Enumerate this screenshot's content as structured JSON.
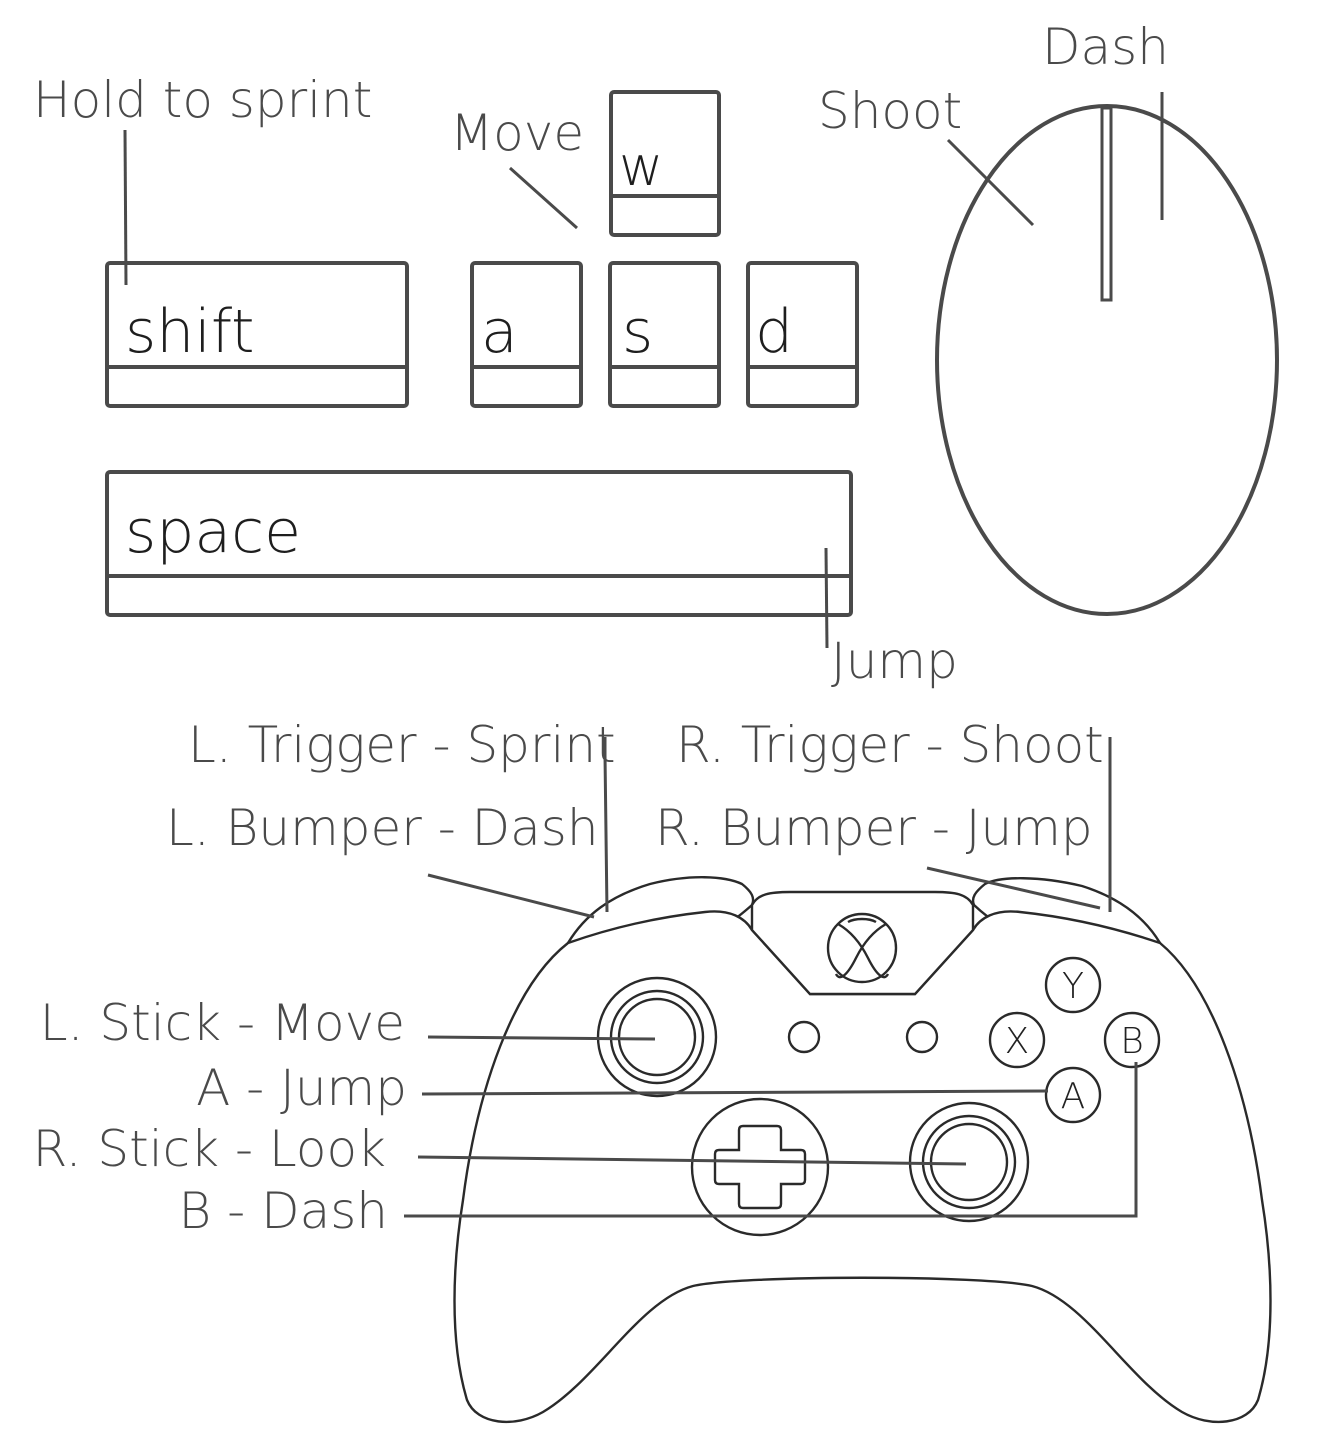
{
  "keyboard": {
    "keys": {
      "w": "w",
      "shift": "shift",
      "a": "a",
      "s": "s",
      "d": "d",
      "space": "space"
    },
    "labels": {
      "hold_to_sprint": "Hold to sprint",
      "move": "Move",
      "jump": "Jump"
    }
  },
  "mouse": {
    "labels": {
      "shoot": "Shoot",
      "dash": "Dash"
    }
  },
  "controller": {
    "labels": {
      "l_trigger": "L. Trigger - Sprint",
      "l_bumper": "L. Bumper - Dash",
      "r_trigger": "R. Trigger - Shoot",
      "r_bumper": "R. Bumper - Jump",
      "l_stick": "L. Stick - Move",
      "a_button": "A - Jump",
      "r_stick": "R. Stick - Look",
      "b_button": "B - Dash"
    },
    "buttons": {
      "y": "Y",
      "x": "X",
      "b": "B",
      "a": "A"
    }
  },
  "colors": {
    "line": "#4a4a4a",
    "text": "#4a4a4a",
    "controller_outline": "#2a2a2a",
    "background": "#ffffff"
  }
}
